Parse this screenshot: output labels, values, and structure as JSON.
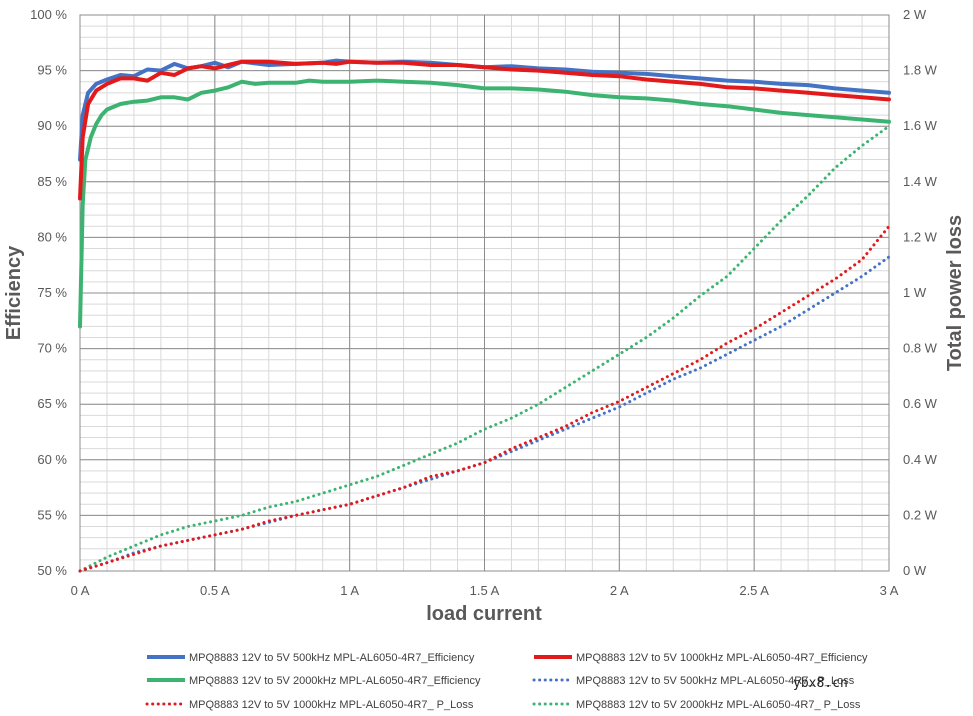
{
  "chart_data": {
    "type": "line",
    "title": "",
    "xlabel": "load current",
    "ylabel_left": "Efficiency",
    "ylabel_right": "Total power loss",
    "xlim": [
      0,
      3
    ],
    "ylim_left": [
      50,
      100
    ],
    "ylim_right": [
      0,
      2
    ],
    "x_ticks": [
      {
        "value": 0,
        "label": "0 A"
      },
      {
        "value": 0.5,
        "label": "0.5 A"
      },
      {
        "value": 1,
        "label": "1 A"
      },
      {
        "value": 1.5,
        "label": "1.5 A"
      },
      {
        "value": 2,
        "label": "2 A"
      },
      {
        "value": 2.5,
        "label": "2.5 A"
      },
      {
        "value": 3,
        "label": "3 A"
      }
    ],
    "y_left_ticks": [
      {
        "value": 50,
        "label": "50 %"
      },
      {
        "value": 55,
        "label": "55 %"
      },
      {
        "value": 60,
        "label": "60 %"
      },
      {
        "value": 65,
        "label": "65 %"
      },
      {
        "value": 70,
        "label": "70 %"
      },
      {
        "value": 75,
        "label": "75 %"
      },
      {
        "value": 80,
        "label": "80 %"
      },
      {
        "value": 85,
        "label": "85 %"
      },
      {
        "value": 90,
        "label": "90 %"
      },
      {
        "value": 95,
        "label": "95 %"
      },
      {
        "value": 100,
        "label": "100 %"
      }
    ],
    "y_right_ticks": [
      {
        "value": 0,
        "label": "0 W"
      },
      {
        "value": 0.2,
        "label": "0.2 W"
      },
      {
        "value": 0.4,
        "label": "0.4 W"
      },
      {
        "value": 0.6,
        "label": "0.6 W"
      },
      {
        "value": 0.8,
        "label": "0.8 W"
      },
      {
        "value": 1.0,
        "label": "1 W"
      },
      {
        "value": 1.2,
        "label": "1.2 W"
      },
      {
        "value": 1.4,
        "label": "1.4 W"
      },
      {
        "value": 1.6,
        "label": "1.6 W"
      },
      {
        "value": 1.8,
        "label": "1.8 W"
      },
      {
        "value": 2.0,
        "label": "2 W"
      }
    ],
    "grid": true,
    "minor_x_step": 0.1,
    "minor_y_step": 1,
    "legend_position": "bottom",
    "series": [
      {
        "name": "MPQ8883 12V to 5V 500kHz MPL-AL6050-4R7_Efficiency",
        "axis": "left",
        "style": "solid",
        "color": "#4472C4",
        "x": [
          0,
          0.01,
          0.03,
          0.06,
          0.1,
          0.15,
          0.2,
          0.25,
          0.3,
          0.35,
          0.4,
          0.45,
          0.5,
          0.55,
          0.6,
          0.7,
          0.8,
          0.9,
          0.95,
          1.0,
          1.1,
          1.2,
          1.3,
          1.4,
          1.5,
          1.6,
          1.7,
          1.8,
          1.9,
          2.0,
          2.1,
          2.2,
          2.3,
          2.4,
          2.5,
          2.6,
          2.7,
          2.8,
          2.9,
          3.0
        ],
        "values": [
          87,
          91,
          93,
          93.8,
          94.2,
          94.6,
          94.5,
          95.1,
          95,
          95.6,
          95.2,
          95.4,
          95.7,
          95.3,
          95.8,
          95.5,
          95.6,
          95.7,
          95.9,
          95.8,
          95.7,
          95.8,
          95.7,
          95.5,
          95.3,
          95.4,
          95.2,
          95.1,
          94.9,
          94.8,
          94.7,
          94.5,
          94.3,
          94.1,
          94,
          93.8,
          93.7,
          93.4,
          93.2,
          93
        ]
      },
      {
        "name": "MPQ8883 12V to 5V 1000kHz MPL-AL6050-4R7_Efficiency",
        "axis": "left",
        "style": "solid",
        "color": "#E31A1C",
        "x": [
          0,
          0.01,
          0.03,
          0.06,
          0.1,
          0.15,
          0.2,
          0.25,
          0.3,
          0.35,
          0.4,
          0.45,
          0.5,
          0.55,
          0.6,
          0.7,
          0.8,
          0.9,
          0.95,
          1.0,
          1.1,
          1.2,
          1.3,
          1.4,
          1.5,
          1.6,
          1.7,
          1.8,
          1.9,
          2.0,
          2.1,
          2.2,
          2.3,
          2.4,
          2.5,
          2.6,
          2.7,
          2.8,
          2.9,
          3.0
        ],
        "values": [
          83.5,
          89,
          92,
          93.2,
          93.8,
          94.3,
          94.3,
          94.1,
          94.8,
          94.6,
          95.2,
          95.4,
          95.2,
          95.5,
          95.8,
          95.8,
          95.6,
          95.7,
          95.6,
          95.8,
          95.7,
          95.7,
          95.5,
          95.5,
          95.3,
          95.1,
          95,
          94.8,
          94.6,
          94.5,
          94.2,
          94,
          93.8,
          93.5,
          93.4,
          93.2,
          93,
          92.8,
          92.6,
          92.4
        ]
      },
      {
        "name": "MPQ8883 12V to 5V 2000kHz MPL-AL6050-4R7_Efficiency",
        "axis": "left",
        "style": "solid",
        "color": "#3CB371",
        "x": [
          0,
          0.01,
          0.02,
          0.04,
          0.06,
          0.08,
          0.1,
          0.15,
          0.2,
          0.25,
          0.3,
          0.35,
          0.4,
          0.45,
          0.5,
          0.55,
          0.6,
          0.65,
          0.7,
          0.8,
          0.85,
          0.9,
          1.0,
          1.1,
          1.2,
          1.3,
          1.4,
          1.5,
          1.6,
          1.7,
          1.8,
          1.9,
          2.0,
          2.1,
          2.2,
          2.3,
          2.4,
          2.5,
          2.6,
          2.7,
          2.8,
          2.9,
          3.0
        ],
        "values": [
          72,
          83,
          87,
          89,
          90.2,
          91,
          91.5,
          92,
          92.2,
          92.3,
          92.6,
          92.6,
          92.4,
          93,
          93.2,
          93.5,
          94,
          93.8,
          93.9,
          93.9,
          94.1,
          94,
          94,
          94.1,
          94,
          93.9,
          93.7,
          93.4,
          93.4,
          93.3,
          93.1,
          92.8,
          92.6,
          92.5,
          92.3,
          92,
          91.8,
          91.5,
          91.2,
          91,
          90.8,
          90.6,
          90.4
        ]
      },
      {
        "name": "MPQ8883 12V to 5V 500kHz MPL-AL6050-4R7_ P_Loss",
        "axis": "right",
        "style": "dotted",
        "color": "#4472C4",
        "x": [
          0,
          0.1,
          0.2,
          0.3,
          0.4,
          0.5,
          0.6,
          0.7,
          0.8,
          0.9,
          1.0,
          1.1,
          1.2,
          1.3,
          1.4,
          1.5,
          1.6,
          1.7,
          1.8,
          1.9,
          2.0,
          2.1,
          2.2,
          2.3,
          2.4,
          2.5,
          2.6,
          2.7,
          2.8,
          2.9,
          3.0
        ],
        "values": [
          0,
          0.03,
          0.065,
          0.09,
          0.11,
          0.13,
          0.15,
          0.175,
          0.2,
          0.22,
          0.24,
          0.27,
          0.3,
          0.33,
          0.36,
          0.39,
          0.43,
          0.47,
          0.51,
          0.55,
          0.59,
          0.64,
          0.69,
          0.73,
          0.78,
          0.83,
          0.88,
          0.94,
          1.0,
          1.06,
          1.13
        ]
      },
      {
        "name": "MPQ8883 12V to 5V 1000kHz MPL-AL6050-4R7_ P_Loss",
        "axis": "right",
        "style": "dotted",
        "color": "#E31A1C",
        "x": [
          0,
          0.1,
          0.2,
          0.3,
          0.4,
          0.5,
          0.6,
          0.7,
          0.8,
          0.9,
          1.0,
          1.1,
          1.2,
          1.3,
          1.4,
          1.5,
          1.6,
          1.7,
          1.8,
          1.9,
          2.0,
          2.1,
          2.2,
          2.3,
          2.4,
          2.5,
          2.6,
          2.7,
          2.8,
          2.9,
          3.0
        ],
        "values": [
          0,
          0.03,
          0.06,
          0.09,
          0.11,
          0.13,
          0.15,
          0.18,
          0.2,
          0.22,
          0.24,
          0.27,
          0.3,
          0.34,
          0.36,
          0.39,
          0.44,
          0.48,
          0.52,
          0.57,
          0.61,
          0.66,
          0.71,
          0.76,
          0.82,
          0.87,
          0.93,
          0.99,
          1.05,
          1.12,
          1.24
        ]
      },
      {
        "name": "MPQ8883 12V to 5V 2000kHz MPL-AL6050-4R7_ P_Loss",
        "axis": "right",
        "style": "dotted",
        "color": "#3CB371",
        "x": [
          0,
          0.1,
          0.2,
          0.3,
          0.4,
          0.5,
          0.6,
          0.7,
          0.8,
          0.9,
          1.0,
          1.1,
          1.2,
          1.3,
          1.4,
          1.5,
          1.6,
          1.7,
          1.8,
          1.9,
          2.0,
          2.1,
          2.2,
          2.3,
          2.4,
          2.5,
          2.6,
          2.7,
          2.8,
          2.9,
          3.0
        ],
        "values": [
          0,
          0.05,
          0.09,
          0.13,
          0.16,
          0.18,
          0.2,
          0.23,
          0.25,
          0.28,
          0.31,
          0.34,
          0.38,
          0.42,
          0.46,
          0.51,
          0.55,
          0.6,
          0.66,
          0.72,
          0.78,
          0.84,
          0.91,
          0.99,
          1.06,
          1.16,
          1.26,
          1.35,
          1.45,
          1.53,
          1.6
        ]
      }
    ]
  },
  "watermark": "ybx8.cn"
}
